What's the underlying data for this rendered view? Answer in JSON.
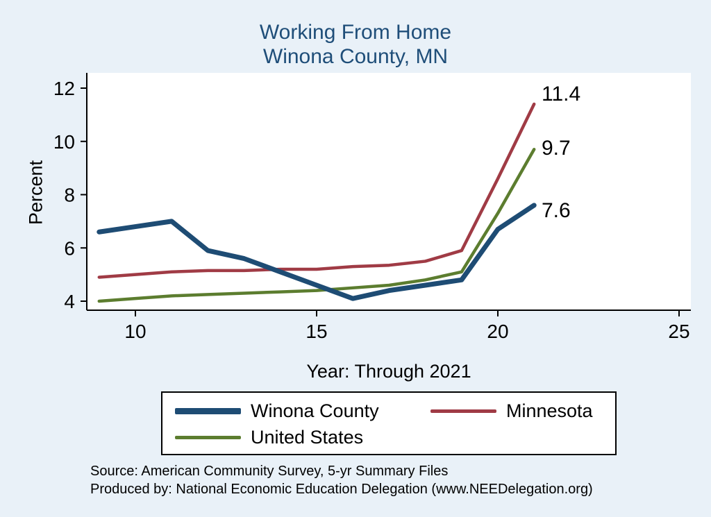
{
  "title": {
    "line1": "Working From Home",
    "line2": "Winona County, MN"
  },
  "colors": {
    "background": "#e9f1f8",
    "plot_background": "#ffffff",
    "title": "#1f4e79",
    "axis": "#000000"
  },
  "chart_data": {
    "type": "line",
    "title": "Working From Home Winona County, MN",
    "xlabel": "Year: Through 2021",
    "ylabel": "Percent",
    "x": [
      9,
      10,
      11,
      12,
      13,
      14,
      15,
      16,
      17,
      18,
      19,
      20,
      21
    ],
    "x_ticks": [
      10,
      15,
      20,
      25
    ],
    "y_ticks": [
      4,
      6,
      8,
      10,
      12
    ],
    "xlim": [
      8.7,
      25.3
    ],
    "ylim": [
      3.7,
      12.6
    ],
    "grid": false,
    "legend_position": "bottom",
    "series": [
      {
        "name": "Winona County",
        "color": "#1e4c74",
        "width": 7,
        "values": [
          6.6,
          6.8,
          7.0,
          5.9,
          5.6,
          5.1,
          4.6,
          4.1,
          4.4,
          4.6,
          4.8,
          6.7,
          7.6
        ],
        "end_label": "7.6"
      },
      {
        "name": "Minnesota",
        "color": "#a03b45",
        "width": 4.5,
        "values": [
          4.9,
          5.0,
          5.1,
          5.15,
          5.15,
          5.2,
          5.2,
          5.3,
          5.35,
          5.5,
          5.9,
          8.6,
          11.4
        ],
        "end_label": "11.4"
      },
      {
        "name": "United States",
        "color": "#5c7d2f",
        "width": 4.5,
        "values": [
          4.0,
          4.1,
          4.2,
          4.25,
          4.3,
          4.35,
          4.4,
          4.5,
          4.6,
          4.8,
          5.1,
          7.3,
          9.7
        ],
        "end_label": "9.7"
      }
    ]
  },
  "footer": {
    "source": "Source: American Community Survey, 5-yr Summary Files",
    "produced": "Produced by: National Economic Education Delegation (www.NEEDelegation.org)"
  }
}
